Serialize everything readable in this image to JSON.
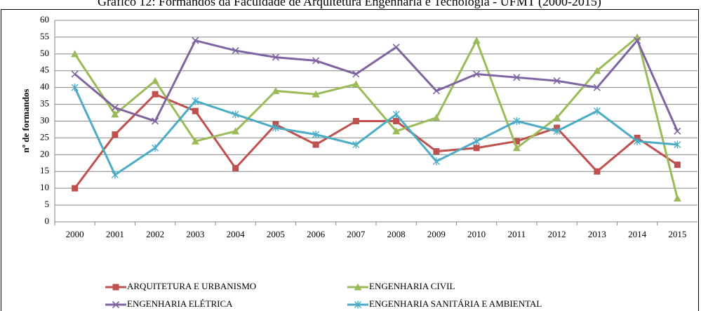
{
  "chart_data": {
    "type": "line",
    "title": "Gráfico 12: Formandos da Faculdade de Arquitetura Engenharia e Tecnologia - UFMT (2000-2015)",
    "y_label": "nº de formandos",
    "categories": [
      "2000",
      "2001",
      "2002",
      "2003",
      "2004",
      "2005",
      "2006",
      "2007",
      "2008",
      "2009",
      "2010",
      "2011",
      "2012",
      "2013",
      "2014",
      "2015"
    ],
    "series": [
      {
        "name": "ARQUITETURA E URBANISMO",
        "color": "#c0504d",
        "marker": "square",
        "values": [
          10,
          26,
          38,
          33,
          16,
          29,
          23,
          30,
          30,
          21,
          22,
          24,
          28,
          15,
          25,
          17
        ]
      },
      {
        "name": "ENGENHARIA CIVIL",
        "color": "#9bbb59",
        "marker": "triangle",
        "values": [
          50,
          32,
          42,
          24,
          27,
          39,
          38,
          41,
          27,
          31,
          54,
          22,
          31,
          45,
          55,
          7
        ]
      },
      {
        "name": "ENGENHARIA ELÉTRICA",
        "color": "#8064a2",
        "marker": "x",
        "values": [
          44,
          34,
          30,
          54,
          51,
          49,
          48,
          44,
          52,
          39,
          44,
          43,
          42,
          40,
          54,
          27
        ]
      },
      {
        "name": "ENGENHARIA SANITÁRIA E AMBIENTAL",
        "color": "#4bacc6",
        "marker": "star",
        "values": [
          40,
          14,
          22,
          36,
          32,
          28,
          26,
          23,
          32,
          18,
          24,
          30,
          27,
          33,
          24,
          23
        ]
      }
    ],
    "ylim": [
      0,
      60
    ],
    "yticks": [
      0,
      5,
      10,
      15,
      20,
      25,
      30,
      35,
      40,
      45,
      50,
      55,
      60
    ],
    "grid": true
  }
}
